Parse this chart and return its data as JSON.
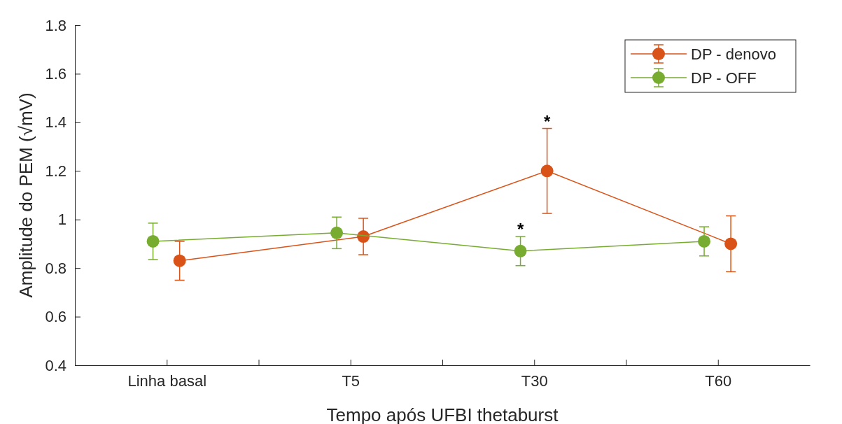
{
  "chart_data": {
    "type": "line",
    "xlabel": "Tempo após UFBI thetaburst",
    "ylabel": "Amplitude do PEM (√mV)",
    "categories": [
      "Linha basal",
      "T5",
      "T30",
      "T60"
    ],
    "series": [
      {
        "name": "DP - denovo",
        "color": "#d95319",
        "values": [
          0.83,
          0.93,
          1.2,
          0.9
        ],
        "errors": [
          0.08,
          0.075,
          0.175,
          0.115
        ]
      },
      {
        "name": "DP - OFF",
        "color": "#77ac30",
        "values": [
          0.91,
          0.945,
          0.87,
          0.91
        ],
        "errors": [
          0.075,
          0.065,
          0.06,
          0.06
        ]
      }
    ],
    "ylim": [
      0.4,
      1.8
    ],
    "yticks": [
      0.4,
      0.6,
      0.8,
      1,
      1.2,
      1.4,
      1.6,
      1.8
    ],
    "annotations": [
      "*",
      "*"
    ],
    "legend": "top right",
    "marker": "circle",
    "line_style": "solid",
    "grid": false
  }
}
